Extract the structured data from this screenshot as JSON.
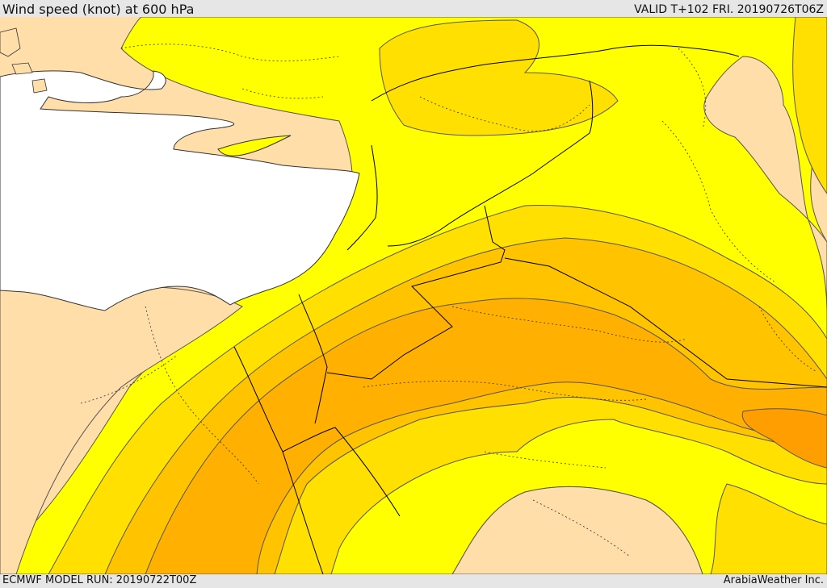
{
  "header": {
    "title": "Wind speed (knot) at 600 hPa",
    "valid": "VALID T+102 FRI. 20190726T06Z"
  },
  "footer": {
    "model_run": "ECMWF MODEL RUN: 20190722T00Z",
    "credit": "ArabiaWeather Inc."
  },
  "colors": {
    "sea": "#ffffff",
    "band_low": "#ffdeaa",
    "band_1": "#ffff00",
    "band_2": "#ffe000",
    "band_3": "#ffc300",
    "band_4": "#ffb000",
    "band_5": "#ff9e00",
    "contour": "#555555",
    "border": "#000000"
  }
}
